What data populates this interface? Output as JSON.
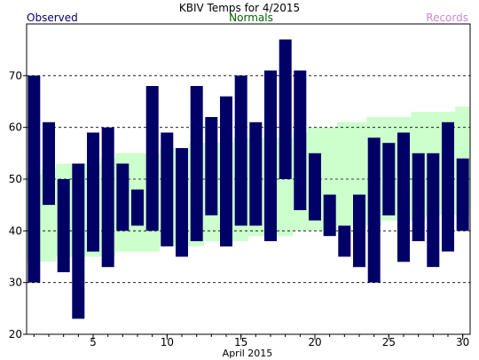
{
  "chart_data": {
    "type": "bar",
    "title": "KBIV Temps for 4/2015",
    "legend": {
      "observed": "Observed",
      "normals": "Normals",
      "records": "Records"
    },
    "xlabel": "April 2015",
    "ylabel": "",
    "x_ticks": [
      "5",
      "10",
      "15",
      "20",
      "25",
      "30"
    ],
    "y_ticks": [
      "20",
      "30",
      "40",
      "50",
      "60",
      "70"
    ],
    "ylim": [
      20,
      80
    ],
    "xlim": [
      0.5,
      30.5
    ],
    "grid": "horizontal-dashed",
    "colors": {
      "observed": "#000066",
      "normals": "#ccffcc",
      "normals_label": "#006600",
      "records_label": "#cc88cc"
    },
    "days": [
      1,
      2,
      3,
      4,
      5,
      6,
      7,
      8,
      9,
      10,
      11,
      12,
      13,
      14,
      15,
      16,
      17,
      18,
      19,
      20,
      21,
      22,
      23,
      24,
      25,
      26,
      27,
      28,
      29,
      30
    ],
    "series": [
      {
        "name": "Observed",
        "high": [
          70,
          61,
          50,
          53,
          59,
          60,
          53,
          48,
          68,
          59,
          56,
          68,
          62,
          66,
          70,
          61,
          71,
          77,
          71,
          55,
          47,
          41,
          47,
          58,
          57,
          59,
          55,
          55,
          61,
          54
        ],
        "low": [
          30,
          45,
          32,
          23,
          36,
          33,
          40,
          41,
          40,
          37,
          35,
          38,
          43,
          37,
          41,
          41,
          38,
          50,
          44,
          42,
          39,
          35,
          33,
          30,
          43,
          34,
          38,
          33,
          36,
          40
        ]
      },
      {
        "name": "Normals",
        "high": [
          51,
          52,
          53,
          53,
          53,
          54,
          55,
          55,
          55,
          56,
          56,
          57,
          57,
          57,
          58,
          58,
          58,
          58,
          59,
          60,
          60,
          61,
          61,
          62,
          62,
          62,
          63,
          63,
          63,
          64
        ],
        "low": [
          34,
          34,
          35,
          35,
          35,
          35,
          36,
          36,
          36,
          37,
          37,
          37,
          38,
          38,
          38,
          39,
          39,
          39,
          40,
          40,
          40,
          41,
          41,
          41,
          42,
          42,
          42,
          43,
          43,
          43
        ]
      }
    ]
  }
}
